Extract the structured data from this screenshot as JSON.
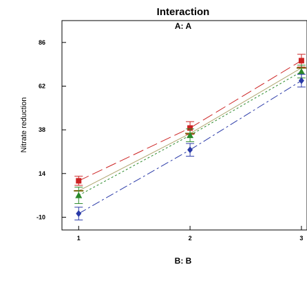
{
  "chart_data": {
    "type": "line",
    "title": "Interaction",
    "subtitle": "A: A",
    "xlabel": "B: B",
    "ylabel": "Nitrate reduction",
    "x": [
      1,
      2,
      3
    ],
    "x_tick_labels": [
      "1",
      "2",
      "3"
    ],
    "y_ticks": [
      -10,
      14,
      38,
      62,
      86
    ],
    "y_tick_labels": [
      "-10",
      "14",
      "38",
      "62",
      "86"
    ],
    "xlim": [
      0.85,
      3.05
    ],
    "ylim": [
      -17,
      98
    ],
    "grid": false,
    "legend": "none",
    "series": [
      {
        "color": "#cc2222",
        "dash": "16,6",
        "marker": "square",
        "values": [
          10.0,
          39.0,
          76.0
        ],
        "error": [
          2.5,
          3.5,
          3.5
        ]
      },
      {
        "color": "#2a8a2a",
        "dash": "3,3",
        "marker": "triangle",
        "values": [
          2.0,
          35.0,
          70.0
        ],
        "error": [
          4.5,
          3.5,
          3.5
        ]
      },
      {
        "color": "#2a3aa8",
        "dash": "12,4,3,4",
        "marker": "diamond",
        "values": [
          -8.0,
          27.0,
          65.0
        ],
        "error": [
          3.5,
          3.5,
          3.5
        ]
      }
    ],
    "mean_line": {
      "color": "#7a6a10",
      "values": [
        4.5,
        36.0,
        72.0
      ]
    }
  }
}
